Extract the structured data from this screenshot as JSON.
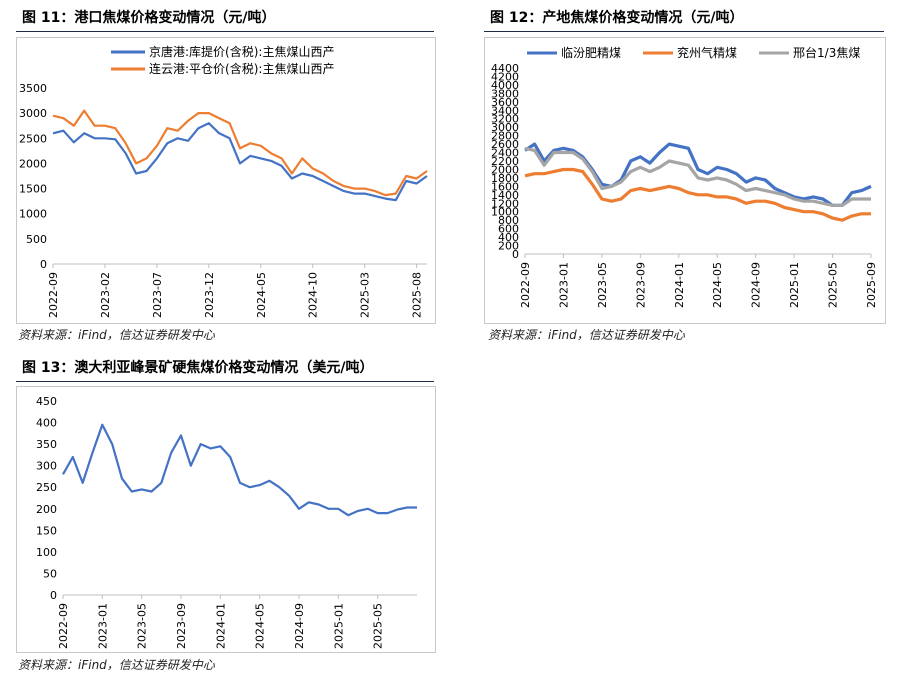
{
  "fig11": {
    "title": "图 11：港口焦煤价格变动情况（元/吨）",
    "source": "资料来源：iFind，信达证券研发中心"
  },
  "fig12": {
    "title": "图 12：产地焦煤价格变动情况（元/吨）",
    "source": "资料来源：iFind，信达证券研发中心"
  },
  "fig13": {
    "title": "图 13：澳大利亚峰景矿硬焦煤价格变动情况（美元/吨）",
    "source": "资料来源：iFind，信达证券研发中心"
  },
  "colors": {
    "blue": "#4472c4",
    "orange": "#ed7d31",
    "gray": "#a5a5a5",
    "axis": "#bfbfbf",
    "grid": "#d9d9d9"
  },
  "chart_data": [
    {
      "id": "fig11",
      "type": "line",
      "title": "",
      "ylim": [
        0,
        3500
      ],
      "yticks": [
        0,
        500,
        1000,
        1500,
        2000,
        2500,
        3000,
        3500
      ],
      "xticks": [
        "2022-09",
        "2023-02",
        "2023-07",
        "2023-12",
        "2024-05",
        "2024-10",
        "2025-03",
        "2025-08"
      ],
      "legend_position": "top-center",
      "grid": false,
      "series": [
        {
          "name": "京唐港:库提价(含税):主焦煤山西产",
          "color": "#4472c4",
          "points": [
            [
              "2022-09",
              2600
            ],
            [
              "2022-10",
              2650
            ],
            [
              "2022-11",
              2420
            ],
            [
              "2022-12",
              2600
            ],
            [
              "2023-01",
              2500
            ],
            [
              "2023-02",
              2500
            ],
            [
              "2023-03",
              2480
            ],
            [
              "2023-04",
              2200
            ],
            [
              "2023-05",
              1800
            ],
            [
              "2023-06",
              1850
            ],
            [
              "2023-07",
              2100
            ],
            [
              "2023-08",
              2400
            ],
            [
              "2023-09",
              2500
            ],
            [
              "2023-10",
              2450
            ],
            [
              "2023-11",
              2700
            ],
            [
              "2023-12",
              2800
            ],
            [
              "2024-01",
              2600
            ],
            [
              "2024-02",
              2500
            ],
            [
              "2024-03",
              2000
            ],
            [
              "2024-04",
              2150
            ],
            [
              "2024-05",
              2100
            ],
            [
              "2024-06",
              2050
            ],
            [
              "2024-07",
              1950
            ],
            [
              "2024-08",
              1700
            ],
            [
              "2024-09",
              1800
            ],
            [
              "2024-10",
              1750
            ],
            [
              "2024-11",
              1650
            ],
            [
              "2024-12",
              1550
            ],
            [
              "2025-01",
              1450
            ],
            [
              "2025-02",
              1400
            ],
            [
              "2025-03",
              1400
            ],
            [
              "2025-04",
              1350
            ],
            [
              "2025-05",
              1300
            ],
            [
              "2025-06",
              1270
            ],
            [
              "2025-07",
              1650
            ],
            [
              "2025-08",
              1600
            ],
            [
              "2025-09",
              1750
            ]
          ]
        },
        {
          "name": "连云港:平仓价(含税):主焦煤山西产",
          "color": "#ed7d31",
          "points": [
            [
              "2022-09",
              2950
            ],
            [
              "2022-10",
              2900
            ],
            [
              "2022-11",
              2750
            ],
            [
              "2022-12",
              3050
            ],
            [
              "2023-01",
              2750
            ],
            [
              "2023-02",
              2750
            ],
            [
              "2023-03",
              2700
            ],
            [
              "2023-04",
              2400
            ],
            [
              "2023-05",
              2000
            ],
            [
              "2023-06",
              2100
            ],
            [
              "2023-07",
              2350
            ],
            [
              "2023-08",
              2700
            ],
            [
              "2023-09",
              2650
            ],
            [
              "2023-10",
              2850
            ],
            [
              "2023-11",
              3000
            ],
            [
              "2023-12",
              3000
            ],
            [
              "2024-01",
              2900
            ],
            [
              "2024-02",
              2800
            ],
            [
              "2024-03",
              2300
            ],
            [
              "2024-04",
              2400
            ],
            [
              "2024-05",
              2350
            ],
            [
              "2024-06",
              2200
            ],
            [
              "2024-07",
              2100
            ],
            [
              "2024-08",
              1800
            ],
            [
              "2024-09",
              2100
            ],
            [
              "2024-10",
              1900
            ],
            [
              "2024-11",
              1800
            ],
            [
              "2024-12",
              1650
            ],
            [
              "2025-01",
              1550
            ],
            [
              "2025-02",
              1500
            ],
            [
              "2025-03",
              1500
            ],
            [
              "2025-04",
              1450
            ],
            [
              "2025-05",
              1370
            ],
            [
              "2025-06",
              1400
            ],
            [
              "2025-07",
              1750
            ],
            [
              "2025-08",
              1700
            ],
            [
              "2025-09",
              1850
            ]
          ]
        }
      ]
    },
    {
      "id": "fig12",
      "type": "line",
      "title": "",
      "ylim": [
        0,
        4400
      ],
      "yticks": [
        0,
        200,
        400,
        600,
        800,
        1000,
        1200,
        1400,
        1600,
        1800,
        2000,
        2200,
        2400,
        2600,
        2800,
        3000,
        3200,
        3400,
        3600,
        3800,
        4000,
        4200,
        4400
      ],
      "xticks": [
        "2022-09",
        "2023-01",
        "2023-05",
        "2023-09",
        "2024-01",
        "2024-05",
        "2024-09",
        "2025-01",
        "2025-05",
        "2025-09"
      ],
      "legend_position": "top-center",
      "grid": false,
      "series": [
        {
          "name": "临汾肥精煤",
          "color": "#4472c4",
          "points": [
            [
              "2022-09",
              2450
            ],
            [
              "2022-10",
              2600
            ],
            [
              "2022-11",
              2200
            ],
            [
              "2022-12",
              2450
            ],
            [
              "2023-01",
              2500
            ],
            [
              "2023-02",
              2450
            ],
            [
              "2023-03",
              2300
            ],
            [
              "2023-04",
              2000
            ],
            [
              "2023-05",
              1650
            ],
            [
              "2023-06",
              1600
            ],
            [
              "2023-07",
              1750
            ],
            [
              "2023-08",
              2200
            ],
            [
              "2023-09",
              2300
            ],
            [
              "2023-10",
              2150
            ],
            [
              "2023-11",
              2400
            ],
            [
              "2023-12",
              2600
            ],
            [
              "2024-01",
              2550
            ],
            [
              "2024-02",
              2500
            ],
            [
              "2024-03",
              2000
            ],
            [
              "2024-04",
              1900
            ],
            [
              "2024-05",
              2050
            ],
            [
              "2024-06",
              2000
            ],
            [
              "2024-07",
              1900
            ],
            [
              "2024-08",
              1700
            ],
            [
              "2024-09",
              1800
            ],
            [
              "2024-10",
              1750
            ],
            [
              "2024-11",
              1550
            ],
            [
              "2024-12",
              1450
            ],
            [
              "2025-01",
              1350
            ],
            [
              "2025-02",
              1300
            ],
            [
              "2025-03",
              1350
            ],
            [
              "2025-04",
              1300
            ],
            [
              "2025-05",
              1150
            ],
            [
              "2025-06",
              1150
            ],
            [
              "2025-07",
              1450
            ],
            [
              "2025-08",
              1500
            ],
            [
              "2025-09",
              1600
            ]
          ]
        },
        {
          "name": "兖州气精煤",
          "color": "#ed7d31",
          "points": [
            [
              "2022-09",
              1850
            ],
            [
              "2022-10",
              1900
            ],
            [
              "2022-11",
              1900
            ],
            [
              "2022-12",
              1950
            ],
            [
              "2023-01",
              2000
            ],
            [
              "2023-02",
              2000
            ],
            [
              "2023-03",
              1950
            ],
            [
              "2023-04",
              1650
            ],
            [
              "2023-05",
              1300
            ],
            [
              "2023-06",
              1250
            ],
            [
              "2023-07",
              1300
            ],
            [
              "2023-08",
              1500
            ],
            [
              "2023-09",
              1550
            ],
            [
              "2023-10",
              1500
            ],
            [
              "2023-11",
              1550
            ],
            [
              "2023-12",
              1600
            ],
            [
              "2024-01",
              1550
            ],
            [
              "2024-02",
              1450
            ],
            [
              "2024-03",
              1400
            ],
            [
              "2024-04",
              1400
            ],
            [
              "2024-05",
              1350
            ],
            [
              "2024-06",
              1350
            ],
            [
              "2024-07",
              1300
            ],
            [
              "2024-08",
              1200
            ],
            [
              "2024-09",
              1250
            ],
            [
              "2024-10",
              1250
            ],
            [
              "2024-11",
              1200
            ],
            [
              "2024-12",
              1100
            ],
            [
              "2025-01",
              1050
            ],
            [
              "2025-02",
              1000
            ],
            [
              "2025-03",
              1000
            ],
            [
              "2025-04",
              950
            ],
            [
              "2025-05",
              850
            ],
            [
              "2025-06",
              800
            ],
            [
              "2025-07",
              900
            ],
            [
              "2025-08",
              950
            ],
            [
              "2025-09",
              950
            ]
          ]
        },
        {
          "name": "邢台1/3焦煤",
          "color": "#a5a5a5",
          "points": [
            [
              "2022-09",
              2500
            ],
            [
              "2022-10",
              2450
            ],
            [
              "2022-11",
              2100
            ],
            [
              "2022-12",
              2400
            ],
            [
              "2023-01",
              2400
            ],
            [
              "2023-02",
              2400
            ],
            [
              "2023-03",
              2250
            ],
            [
              "2023-04",
              1950
            ],
            [
              "2023-05",
              1550
            ],
            [
              "2023-06",
              1600
            ],
            [
              "2023-07",
              1700
            ],
            [
              "2023-08",
              1950
            ],
            [
              "2023-09",
              2050
            ],
            [
              "2023-10",
              1950
            ],
            [
              "2023-11",
              2050
            ],
            [
              "2023-12",
              2200
            ],
            [
              "2024-01",
              2150
            ],
            [
              "2024-02",
              2100
            ],
            [
              "2024-03",
              1800
            ],
            [
              "2024-04",
              1750
            ],
            [
              "2024-05",
              1800
            ],
            [
              "2024-06",
              1750
            ],
            [
              "2024-07",
              1650
            ],
            [
              "2024-08",
              1500
            ],
            [
              "2024-09",
              1550
            ],
            [
              "2024-10",
              1500
            ],
            [
              "2024-11",
              1450
            ],
            [
              "2024-12",
              1400
            ],
            [
              "2025-01",
              1300
            ],
            [
              "2025-02",
              1250
            ],
            [
              "2025-03",
              1250
            ],
            [
              "2025-04",
              1200
            ],
            [
              "2025-05",
              1150
            ],
            [
              "2025-06",
              1150
            ],
            [
              "2025-07",
              1300
            ],
            [
              "2025-08",
              1300
            ],
            [
              "2025-09",
              1300
            ]
          ]
        }
      ]
    },
    {
      "id": "fig13",
      "type": "line",
      "title": "",
      "ylim": [
        0,
        450
      ],
      "yticks": [
        0,
        50,
        100,
        150,
        200,
        250,
        300,
        350,
        400,
        450
      ],
      "xticks": [
        "2022-09",
        "2023-01",
        "2023-05",
        "2023-09",
        "2024-01",
        "2024-05",
        "2024-09",
        "2025-01",
        "2025-05"
      ],
      "legend_position": "none",
      "grid": false,
      "series": [
        {
          "name": "",
          "color": "#4472c4",
          "points": [
            [
              "2022-09",
              280
            ],
            [
              "2022-10",
              320
            ],
            [
              "2022-11",
              260
            ],
            [
              "2022-12",
              330
            ],
            [
              "2023-01",
              395
            ],
            [
              "2023-02",
              350
            ],
            [
              "2023-03",
              270
            ],
            [
              "2023-04",
              240
            ],
            [
              "2023-05",
              245
            ],
            [
              "2023-06",
              240
            ],
            [
              "2023-07",
              260
            ],
            [
              "2023-08",
              330
            ],
            [
              "2023-09",
              370
            ],
            [
              "2023-10",
              300
            ],
            [
              "2023-11",
              350
            ],
            [
              "2023-12",
              340
            ],
            [
              "2024-01",
              345
            ],
            [
              "2024-02",
              320
            ],
            [
              "2024-03",
              260
            ],
            [
              "2024-04",
              250
            ],
            [
              "2024-05",
              255
            ],
            [
              "2024-06",
              265
            ],
            [
              "2024-07",
              250
            ],
            [
              "2024-08",
              230
            ],
            [
              "2024-09",
              200
            ],
            [
              "2024-10",
              215
            ],
            [
              "2024-11",
              210
            ],
            [
              "2024-12",
              200
            ],
            [
              "2025-01",
              200
            ],
            [
              "2025-02",
              185
            ],
            [
              "2025-03",
              195
            ],
            [
              "2025-04",
              200
            ],
            [
              "2025-05",
              190
            ],
            [
              "2025-06",
              190
            ],
            [
              "2025-07",
              198
            ],
            [
              "2025-08",
              203
            ],
            [
              "2025-09",
              203
            ]
          ]
        }
      ]
    }
  ]
}
